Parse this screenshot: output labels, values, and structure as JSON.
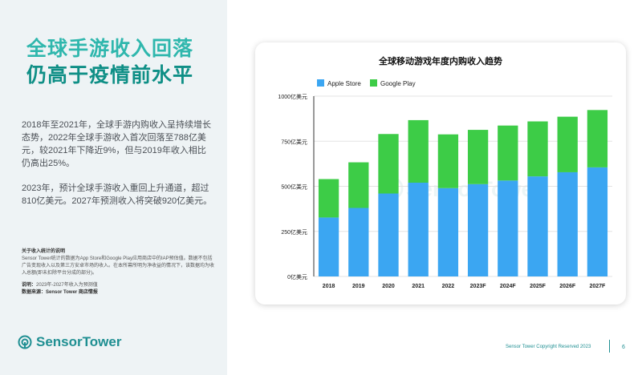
{
  "slide": {
    "title_line1": "全球手游收入回落",
    "title_line2": "仍高于疫情前水平",
    "paragraph1": "2018年至2021年，全球手游内购收入呈持续增长态势，2022年全球手游收入首次回落至788亿美元，较2021年下降近9%，但与2019年收入相比仍高出25%。",
    "paragraph2": "2023年，预计全球手游收入重回上升通道，超过810亿美元。2027年预测收入将突破920亿美元。",
    "notes": {
      "heading": "关于收入统计的说明",
      "body": "Sensor Tower统计的数据为App Store和Google Play应用商店中的IAP预估值。数据不包括广告变现收入以及第三方安卓市场的收入。在本所幕所明为净收益的情况下，该数据均为收入总额(即未扣除平台分成的部分)。",
      "note_label": "说明：",
      "note_text": "2023年-2027年收入为预测值",
      "source_label": "数据来源：",
      "source_text": "Sensor Tower 商店情报"
    },
    "brand": "SensorTower",
    "footer": "Sensor Tower Copyright Reserved 2023",
    "page_number": "6",
    "colors": {
      "teal": "#2fb7ad",
      "dark_teal": "#0f8f86",
      "apple": "#3ba6f2",
      "google": "#3dcc47"
    }
  },
  "chart_data": {
    "type": "bar",
    "stacked": true,
    "title": "全球移动游戏年度内购收入趋势",
    "categories": [
      "2018",
      "2019",
      "2020",
      "2021",
      "2022",
      "2023F",
      "2024F",
      "2025F",
      "2026F",
      "2027F"
    ],
    "series": [
      {
        "name": "Apple Store",
        "color": "#3ba6f2",
        "values": [
          327,
          380,
          460,
          520,
          490,
          512,
          532,
          555,
          578,
          605
        ]
      },
      {
        "name": "Google Play",
        "color": "#3dcc47",
        "values": [
          213,
          253,
          330,
          347,
          298,
          301,
          305,
          305,
          308,
          318
        ]
      }
    ],
    "ylim": [
      0,
      1000
    ],
    "yticks": [
      0,
      250,
      500,
      750,
      1000
    ],
    "ytick_labels": [
      "0亿美元",
      "250亿美元",
      "500亿美元",
      "750亿美元",
      "1000亿美元"
    ],
    "legend_position": "top-left",
    "grid": true
  }
}
